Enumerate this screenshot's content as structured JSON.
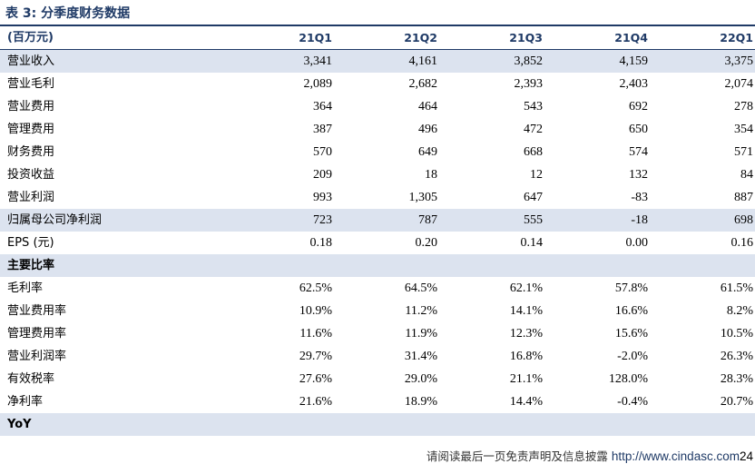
{
  "title": "表 3:  分季度财务数据",
  "header": {
    "unit": "(百万元)",
    "columns": [
      "21Q1",
      "21Q2",
      "21Q3",
      "21Q4",
      "22Q1"
    ]
  },
  "rows": [
    {
      "label": "营业收入",
      "values": [
        "3,341",
        "4,161",
        "3,852",
        "4,159",
        "3,375"
      ]
    },
    {
      "label": "营业毛利",
      "values": [
        "2,089",
        "2,682",
        "2,393",
        "2,403",
        "2,074"
      ]
    },
    {
      "label": "营业费用",
      "values": [
        "364",
        "464",
        "543",
        "692",
        "278"
      ]
    },
    {
      "label": "管理费用",
      "values": [
        "387",
        "496",
        "472",
        "650",
        "354"
      ]
    },
    {
      "label": "财务费用",
      "values": [
        "570",
        "649",
        "668",
        "574",
        "571"
      ]
    },
    {
      "label": "投资收益",
      "values": [
        "209",
        "18",
        "12",
        "132",
        "84"
      ]
    },
    {
      "label": "营业利润",
      "values": [
        "993",
        "1,305",
        "647",
        "-83",
        "887"
      ]
    },
    {
      "label": "归属母公司净利润",
      "values": [
        "723",
        "787",
        "555",
        "-18",
        "698"
      ]
    },
    {
      "label": "EPS (元)",
      "values": [
        "0.18",
        "0.20",
        "0.14",
        "0.00",
        "0.16"
      ]
    }
  ],
  "ratios_section": "主要比率",
  "ratios": [
    {
      "label": "毛利率",
      "values": [
        "62.5%",
        "64.5%",
        "62.1%",
        "57.8%",
        "61.5%"
      ]
    },
    {
      "label": "营业费用率",
      "values": [
        "10.9%",
        "11.2%",
        "14.1%",
        "16.6%",
        "8.2%"
      ]
    },
    {
      "label": "管理费用率",
      "values": [
        "11.6%",
        "11.9%",
        "12.3%",
        "15.6%",
        "10.5%"
      ]
    },
    {
      "label": "营业利润率",
      "values": [
        "29.7%",
        "31.4%",
        "16.8%",
        "-2.0%",
        "26.3%"
      ]
    },
    {
      "label": "有效税率",
      "values": [
        "27.6%",
        "29.0%",
        "21.1%",
        "128.0%",
        "28.3%"
      ]
    },
    {
      "label": "净利率",
      "values": [
        "21.6%",
        "18.9%",
        "14.4%",
        "-0.4%",
        "20.7%"
      ]
    }
  ],
  "yoy_section": "YoY",
  "footer": {
    "disclaimer": "请阅读最后一页免责声明及信息披露",
    "url": "http://www.cindasc.com",
    "page": "24"
  }
}
